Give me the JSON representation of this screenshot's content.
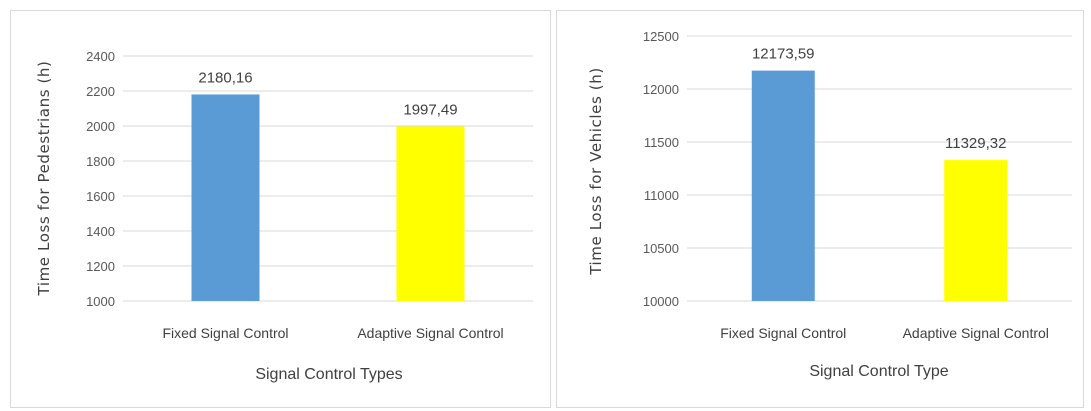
{
  "chart_data": [
    {
      "type": "bar",
      "categories": [
        "Fixed Signal Control",
        "Adaptive Signal Control"
      ],
      "values": [
        2180.16,
        1997.49
      ],
      "value_labels": [
        "2180,16",
        "1997,49"
      ],
      "bar_colors": [
        "#5b9bd5",
        "#ffff00"
      ],
      "xlabel": "Signal Control Types",
      "ylabel": "Time Loss for Pedestrians (h)",
      "ylim": [
        1000,
        2400
      ],
      "yticks": [
        1000,
        1200,
        1400,
        1600,
        1800,
        2000,
        2200,
        2400
      ],
      "grid": true
    },
    {
      "type": "bar",
      "categories": [
        "Fixed Signal Control",
        "Adaptive Signal Control"
      ],
      "values": [
        12173.59,
        11329.32
      ],
      "value_labels": [
        "12173,59",
        "11329,32"
      ],
      "bar_colors": [
        "#5b9bd5",
        "#ffff00"
      ],
      "xlabel": "Signal Control Type",
      "ylabel": "Time Loss for Vehicles (h)",
      "ylim": [
        10000,
        12500
      ],
      "yticks": [
        10000,
        10500,
        11000,
        11500,
        12000,
        12500
      ],
      "grid": true
    }
  ]
}
